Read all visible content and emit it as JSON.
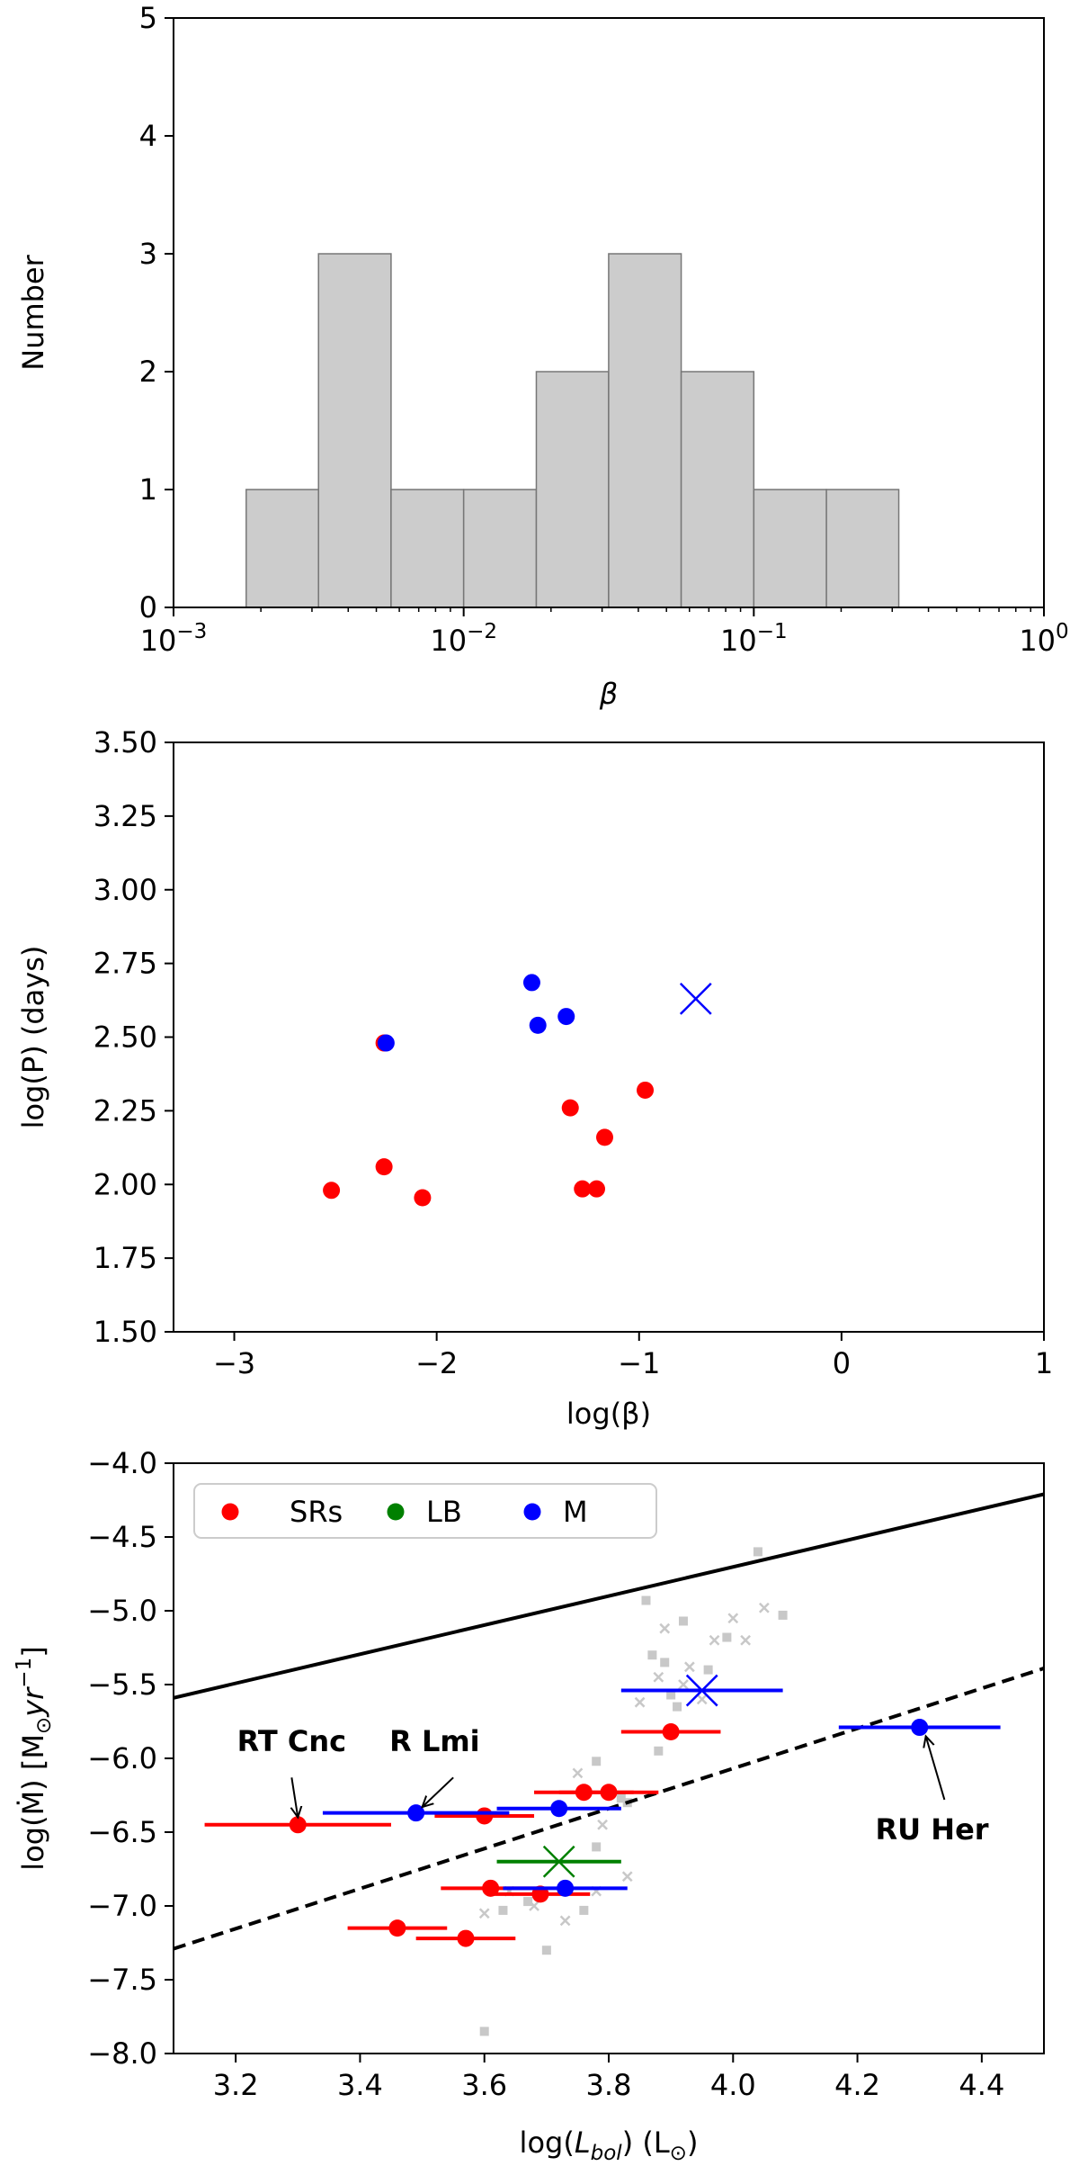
{
  "chart_data": [
    {
      "type": "bar",
      "subtype": "histogram",
      "xscale": "log",
      "xlabel": "β",
      "ylabel": "Number",
      "xlim": [
        0.001,
        1.0
      ],
      "ylim": [
        0,
        5
      ],
      "xticks": [
        {
          "value": 0.001,
          "base": "10",
          "exp": "−3"
        },
        {
          "value": 0.01,
          "base": "10",
          "exp": "−2"
        },
        {
          "value": 0.1,
          "base": "10",
          "exp": "−1"
        },
        {
          "value": 1.0,
          "base": "10",
          "exp": "0"
        }
      ],
      "yticks": [
        "0",
        "1",
        "2",
        "3",
        "4",
        "5"
      ],
      "bar_color": "#cccccc",
      "bins": [
        {
          "left": 0.00178,
          "right": 0.00316,
          "count": 1
        },
        {
          "left": 0.00316,
          "right": 0.00562,
          "count": 3
        },
        {
          "left": 0.00562,
          "right": 0.01,
          "count": 1
        },
        {
          "left": 0.01,
          "right": 0.0178,
          "count": 1
        },
        {
          "left": 0.0178,
          "right": 0.0316,
          "count": 2
        },
        {
          "left": 0.0316,
          "right": 0.0562,
          "count": 3
        },
        {
          "left": 0.0562,
          "right": 0.1,
          "count": 2
        },
        {
          "left": 0.1,
          "right": 0.178,
          "count": 1
        },
        {
          "left": 0.178,
          "right": 0.316,
          "count": 1
        }
      ]
    },
    {
      "type": "scatter",
      "xlabel": "log(β)",
      "ylabel": "log(P) (days)",
      "xlim": [
        -3.3,
        1.0
      ],
      "ylim": [
        1.5,
        3.5
      ],
      "xticks": [
        "−3",
        "−2",
        "−1",
        "0",
        "1"
      ],
      "yticks": [
        "1.50",
        "1.75",
        "2.00",
        "2.25",
        "2.50",
        "2.75",
        "3.00",
        "3.25",
        "3.50"
      ],
      "series": [
        {
          "color": "#ff0000",
          "marker": "circle",
          "points": [
            {
              "x": -2.52,
              "y": 1.98
            },
            {
              "x": -2.26,
              "y": 2.06
            },
            {
              "x": -2.26,
              "y": 2.48
            },
            {
              "x": -2.07,
              "y": 1.955
            },
            {
              "x": -1.34,
              "y": 2.26
            },
            {
              "x": -1.28,
              "y": 1.985
            },
            {
              "x": -1.21,
              "y": 1.985
            },
            {
              "x": -1.17,
              "y": 2.16
            },
            {
              "x": -0.97,
              "y": 2.32
            }
          ]
        },
        {
          "color": "#0000ff",
          "marker": "circle",
          "points": [
            {
              "x": -2.25,
              "y": 2.48
            },
            {
              "x": -1.53,
              "y": 2.685
            },
            {
              "x": -1.5,
              "y": 2.54
            },
            {
              "x": -1.36,
              "y": 2.57
            }
          ]
        },
        {
          "color": "#0000ff",
          "marker": "x",
          "points": [
            {
              "x": -0.72,
              "y": 2.63
            }
          ]
        }
      ]
    },
    {
      "type": "scatter",
      "xlabel_main": "log(",
      "xlabel_sym": "L",
      "xlabel_sub": "bol",
      "xlabel_rest": ") (L",
      "xlabel_sun": "⊙",
      "xlabel_end": ")",
      "ylabel_text": "log(Ṁ) [M",
      "ylabel_sun": "⊙",
      "ylabel_mid": "yr",
      "ylabel_exp": "−1",
      "ylabel_end": "]",
      "xlim": [
        3.1,
        4.5
      ],
      "ylim": [
        -8.0,
        -4.0
      ],
      "xticks": [
        "3.2",
        "3.4",
        "3.6",
        "3.8",
        "4.0",
        "4.2",
        "4.4"
      ],
      "yticks": [
        "−8.0",
        "−7.5",
        "−7.0",
        "−6.5",
        "−6.0",
        "−5.5",
        "−5.0",
        "−4.5",
        "−4.0"
      ],
      "legend": {
        "position": "top-left",
        "entries": [
          {
            "label": "SRs",
            "color": "#ff0000"
          },
          {
            "label": "LB",
            "color": "#008000"
          },
          {
            "label": "M",
            "color": "#0000ff"
          }
        ]
      },
      "lines": [
        {
          "style": "solid",
          "x": [
            3.1,
            4.5
          ],
          "y": [
            -5.59,
            -4.21
          ]
        },
        {
          "style": "dashed",
          "x": [
            3.1,
            4.5
          ],
          "y": [
            -7.29,
            -5.39
          ]
        }
      ],
      "series": [
        {
          "name": "SRs",
          "color": "#ff0000",
          "marker": "circle",
          "points": [
            {
              "x": 3.3,
              "y": -6.45,
              "xerr": 0.15
            },
            {
              "x": 3.46,
              "y": -7.15,
              "xerr": 0.08
            },
            {
              "x": 3.57,
              "y": -7.22,
              "xerr": 0.08
            },
            {
              "x": 3.6,
              "y": -6.39,
              "xerr": 0.08
            },
            {
              "x": 3.61,
              "y": -6.88,
              "xerr": 0.08
            },
            {
              "x": 3.69,
              "y": -6.92,
              "xerr": 0.08
            },
            {
              "x": 3.76,
              "y": -6.23,
              "xerr": 0.08
            },
            {
              "x": 3.8,
              "y": -6.23,
              "xerr": 0.08
            },
            {
              "x": 3.9,
              "y": -5.82,
              "xerr": 0.08
            }
          ]
        },
        {
          "name": "LB",
          "color": "#008000",
          "marker": "x",
          "points": [
            {
              "x": 3.72,
              "y": -6.7,
              "xerr": 0.1
            }
          ]
        },
        {
          "name": "M",
          "color": "#0000ff",
          "marker": "circle",
          "points": [
            {
              "x": 3.49,
              "y": -6.37,
              "xerr": 0.15
            },
            {
              "x": 3.72,
              "y": -6.34,
              "xerr": 0.1
            },
            {
              "x": 3.73,
              "y": -6.88,
              "xerr": 0.1
            },
            {
              "x": 4.3,
              "y": -5.79,
              "xerr": 0.13
            }
          ]
        },
        {
          "name": "M",
          "color": "#0000ff",
          "marker": "x",
          "points": [
            {
              "x": 3.95,
              "y": -5.54,
              "xerr": 0.13
            }
          ]
        }
      ],
      "background_points": {
        "color": "#c8c8c8",
        "squares": [
          {
            "x": 3.6,
            "y": -7.85
          },
          {
            "x": 3.7,
            "y": -7.3
          },
          {
            "x": 3.63,
            "y": -7.03
          },
          {
            "x": 3.67,
            "y": -6.97
          },
          {
            "x": 3.76,
            "y": -7.03
          },
          {
            "x": 3.78,
            "y": -6.6
          },
          {
            "x": 3.78,
            "y": -6.02
          },
          {
            "x": 3.82,
            "y": -6.27
          },
          {
            "x": 3.88,
            "y": -5.95
          },
          {
            "x": 3.87,
            "y": -5.3
          },
          {
            "x": 3.89,
            "y": -5.35
          },
          {
            "x": 3.9,
            "y": -5.57
          },
          {
            "x": 3.91,
            "y": -5.65
          },
          {
            "x": 3.92,
            "y": -5.07
          },
          {
            "x": 3.96,
            "y": -5.4
          },
          {
            "x": 3.99,
            "y": -5.18
          },
          {
            "x": 4.04,
            "y": -4.6
          },
          {
            "x": 4.08,
            "y": -5.03
          },
          {
            "x": 3.86,
            "y": -4.93
          },
          {
            "x": 3.83,
            "y": -6.3
          }
        ],
        "crosses": [
          {
            "x": 3.6,
            "y": -7.05
          },
          {
            "x": 3.64,
            "y": -6.9
          },
          {
            "x": 3.68,
            "y": -7.0
          },
          {
            "x": 3.73,
            "y": -7.1
          },
          {
            "x": 3.78,
            "y": -6.9
          },
          {
            "x": 3.83,
            "y": -6.8
          },
          {
            "x": 3.79,
            "y": -6.45
          },
          {
            "x": 3.75,
            "y": -6.1
          },
          {
            "x": 3.85,
            "y": -5.62
          },
          {
            "x": 3.88,
            "y": -5.45
          },
          {
            "x": 3.89,
            "y": -5.12
          },
          {
            "x": 3.93,
            "y": -5.38
          },
          {
            "x": 3.97,
            "y": -5.2
          },
          {
            "x": 4.0,
            "y": -5.05
          },
          {
            "x": 4.02,
            "y": -5.2
          },
          {
            "x": 4.05,
            "y": -4.98
          },
          {
            "x": 3.95,
            "y": -5.6
          },
          {
            "x": 3.92,
            "y": -5.5
          }
        ]
      },
      "annotations": [
        {
          "text": "RT Cnc",
          "label_x": 3.29,
          "label_y": -5.95,
          "arrow_from": [
            3.29,
            -6.13
          ],
          "arrow_to": [
            3.3,
            -6.4
          ]
        },
        {
          "text": "R Lmi",
          "label_x": 3.52,
          "label_y": -5.95,
          "arrow_from": [
            3.55,
            -6.13
          ],
          "arrow_to": [
            3.5,
            -6.33
          ]
        },
        {
          "text": "RU Her",
          "label_x": 4.32,
          "label_y": -6.55,
          "arrow_from": [
            4.34,
            -6.28
          ],
          "arrow_to": [
            4.31,
            -5.85
          ]
        }
      ]
    }
  ]
}
